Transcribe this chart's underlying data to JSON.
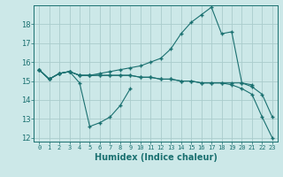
{
  "title": "",
  "xlabel": "Humidex (Indice chaleur)",
  "bg_color": "#cce8e8",
  "grid_color": "#aacccc",
  "line_color": "#1a7070",
  "xlim": [
    -0.5,
    23.5
  ],
  "ylim": [
    11.8,
    19.0
  ],
  "yticks": [
    12,
    13,
    14,
    15,
    16,
    17,
    18
  ],
  "xticks": [
    0,
    1,
    2,
    3,
    4,
    5,
    6,
    7,
    8,
    9,
    10,
    11,
    12,
    13,
    14,
    15,
    16,
    17,
    18,
    19,
    20,
    21,
    22,
    23
  ],
  "line1": [
    15.6,
    15.1,
    15.4,
    15.5,
    14.9,
    12.6,
    12.8,
    13.1,
    13.7,
    14.6,
    null,
    null,
    null,
    null,
    null,
    null,
    null,
    null,
    null,
    null,
    null,
    null,
    null,
    null
  ],
  "line2": [
    15.6,
    15.1,
    15.4,
    15.5,
    15.3,
    15.3,
    15.3,
    15.3,
    15.3,
    15.3,
    15.2,
    15.2,
    15.1,
    15.1,
    15.0,
    15.0,
    14.9,
    14.9,
    14.9,
    14.8,
    14.6,
    14.3,
    13.1,
    12.0
  ],
  "line3": [
    15.6,
    15.1,
    15.4,
    15.5,
    15.3,
    15.3,
    15.4,
    15.5,
    15.6,
    15.7,
    15.8,
    16.0,
    16.2,
    16.7,
    17.5,
    18.1,
    18.5,
    18.9,
    17.5,
    17.6,
    14.9,
    14.7,
    14.3,
    13.1
  ],
  "line4": [
    15.6,
    15.1,
    15.4,
    15.5,
    15.3,
    15.3,
    15.3,
    15.3,
    15.3,
    15.3,
    15.2,
    15.2,
    15.1,
    15.1,
    15.0,
    15.0,
    14.9,
    14.9,
    14.9,
    14.9,
    14.9,
    14.8,
    null,
    null
  ]
}
